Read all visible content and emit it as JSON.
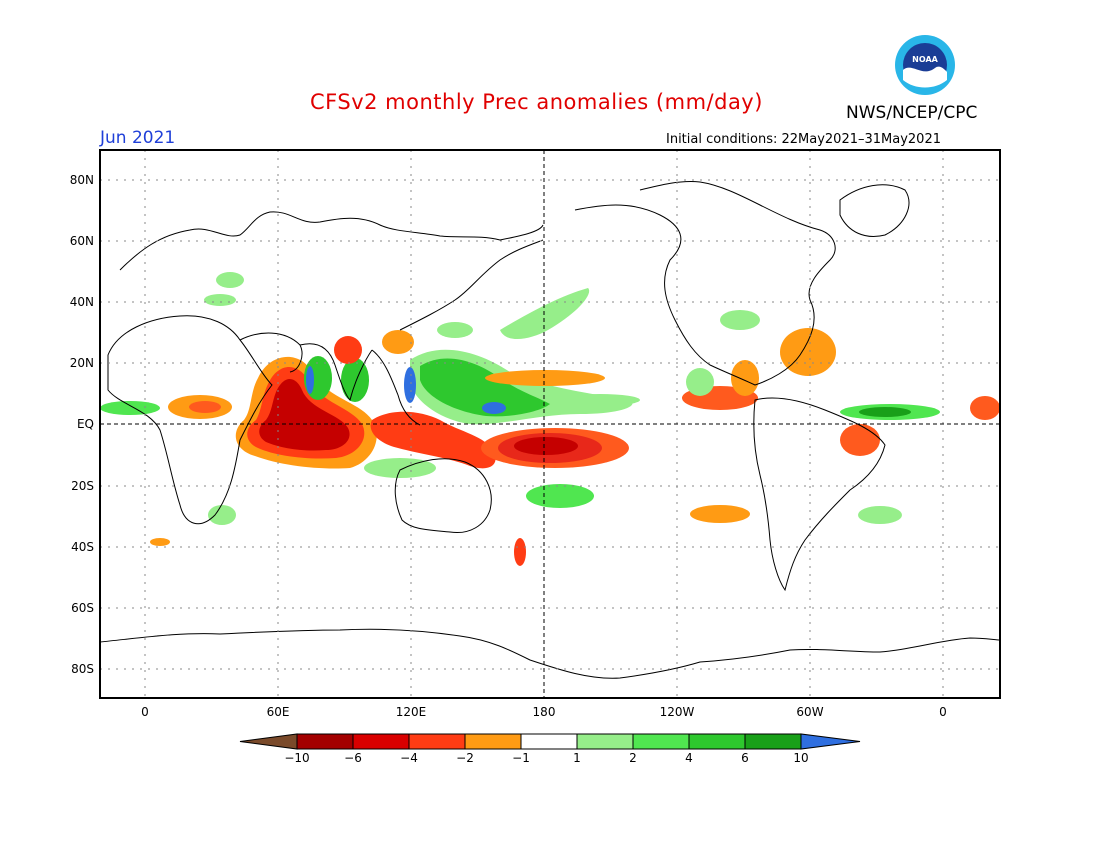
{
  "title": "CFSv2 monthly Prec anomalies (mm/day)",
  "agency": "NWS/NCEP/CPC",
  "logo": {
    "text": "NOAA",
    "ring_color": "#29b6e8",
    "core_color": "#1a3d96"
  },
  "valid_month": "Jun 2021",
  "initial_conditions": "Initial conditions: 22May2021–31May2021",
  "axes": {
    "lat_labels": [
      "80N",
      "60N",
      "40N",
      "20N",
      "EQ",
      "20S",
      "40S",
      "60S",
      "80S"
    ],
    "lon_labels": [
      "0",
      "60E",
      "120E",
      "180",
      "120W",
      "60W",
      "0"
    ]
  },
  "colorbar": {
    "labels": [
      "−10",
      "−6",
      "−4",
      "−2",
      "−1",
      "1",
      "2",
      "4",
      "6",
      "10"
    ],
    "colors": {
      "below_min": "#7a4a2a",
      "bins": [
        "#a30000",
        "#d90000",
        "#ff3c14",
        "#ff9b14",
        "#ffffff",
        "#96ee8a",
        "#50e650",
        "#2ec82e",
        "#19a019"
      ],
      "above_max": "#2f6fe0"
    }
  },
  "colors": {
    "strong_dry": "#c50000",
    "dry": "#e8281a",
    "moderate_dry": "#ff5a1e",
    "light_dry": "#ff9b14",
    "light_wet": "#96ee8a",
    "wet": "#50e650",
    "moderate_wet": "#2ec82e",
    "strong_wet": "#19a019",
    "very_wet": "#2f6fe0",
    "coast": "#000000",
    "grid": "#888888"
  }
}
